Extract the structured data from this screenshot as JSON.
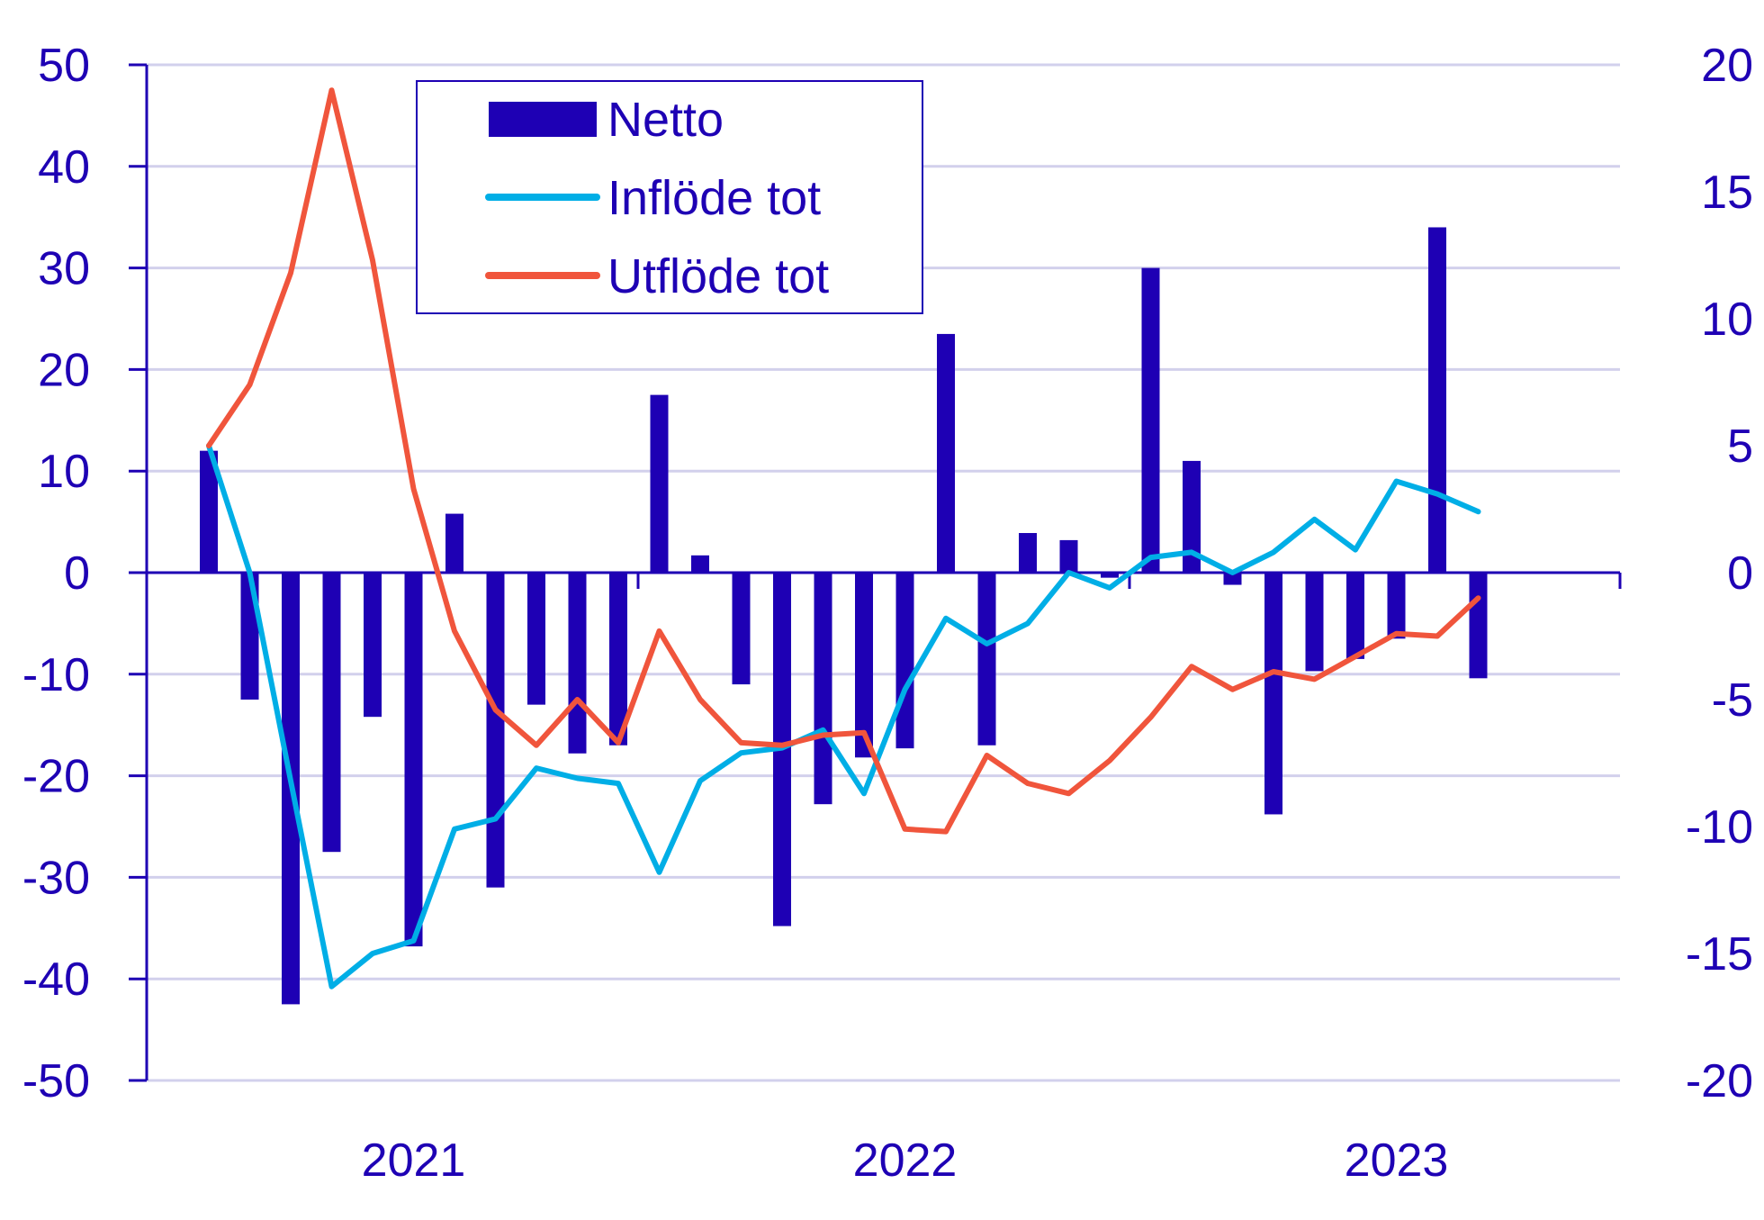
{
  "chart_data": {
    "type": "bar+line",
    "title": "",
    "xlabel": "",
    "ylabel": "",
    "ylim_left": [
      -50,
      50
    ],
    "ylim_right": [
      -20,
      20
    ],
    "yticks_left": [
      "50",
      "40",
      "30",
      "20",
      "10",
      "0",
      "-10",
      "-20",
      "-30",
      "-40",
      "-50"
    ],
    "yticks_right": [
      "20",
      "15",
      "10",
      "5",
      "0",
      "-5",
      "-10",
      "-15",
      "-20"
    ],
    "x_labels": [
      {
        "label": "2021",
        "index": 5
      },
      {
        "label": "2022",
        "index": 17
      },
      {
        "label": "2023",
        "index": 29
      }
    ],
    "x_count": 36,
    "grid": true,
    "legend_position": "top-center",
    "colors": {
      "bars": "#1e00b4",
      "inflow": "#00aee6",
      "outflow": "#f0553c",
      "grid": "#d2d0ec",
      "axis": "#1e00b4"
    },
    "series": [
      {
        "name": "Netto",
        "kind": "bar",
        "axis": "left",
        "values": [
          12,
          -12.5,
          -42.5,
          -27.5,
          -14.2,
          -36.8,
          5.8,
          -31,
          -13,
          -17.8,
          -17,
          17.5,
          1.7,
          -11,
          -34.8,
          -22.8,
          -18.2,
          -17.3,
          23.5,
          -17,
          3.9,
          3.2,
          -0.5,
          30,
          11,
          -1.2,
          -23.8,
          -9.7,
          -8.5,
          -6.5,
          34,
          -10.4
        ]
      },
      {
        "name": "Inflöde tot",
        "kind": "line",
        "axis": "right",
        "values": [
          5,
          0,
          -8.2,
          -16.3,
          -15,
          -14.5,
          -10.1,
          -9.7,
          -7.7,
          -8.1,
          -8.3,
          -11.8,
          -8.2,
          -7.1,
          -6.9,
          -6.2,
          -8.7,
          -4.6,
          -1.8,
          -2.8,
          -2,
          0,
          -0.6,
          0.6,
          0.8,
          0,
          0.8,
          2.1,
          0.9,
          3.6,
          3.1,
          2.4
        ]
      },
      {
        "name": "Utflöde tot",
        "kind": "line",
        "axis": "right",
        "values": [
          5,
          7.4,
          11.8,
          19,
          12.3,
          3.3,
          -2.3,
          -5.4,
          -6.8,
          -5,
          -6.7,
          -2.3,
          -5,
          -6.7,
          -6.8,
          -6.4,
          -6.3,
          -10.1,
          -10.2,
          -7.2,
          -8.3,
          -8.7,
          -7.4,
          -5.7,
          -3.7,
          -4.6,
          -3.9,
          -4.2,
          -3.3,
          -2.4,
          -2.5,
          -1
        ]
      }
    ]
  }
}
